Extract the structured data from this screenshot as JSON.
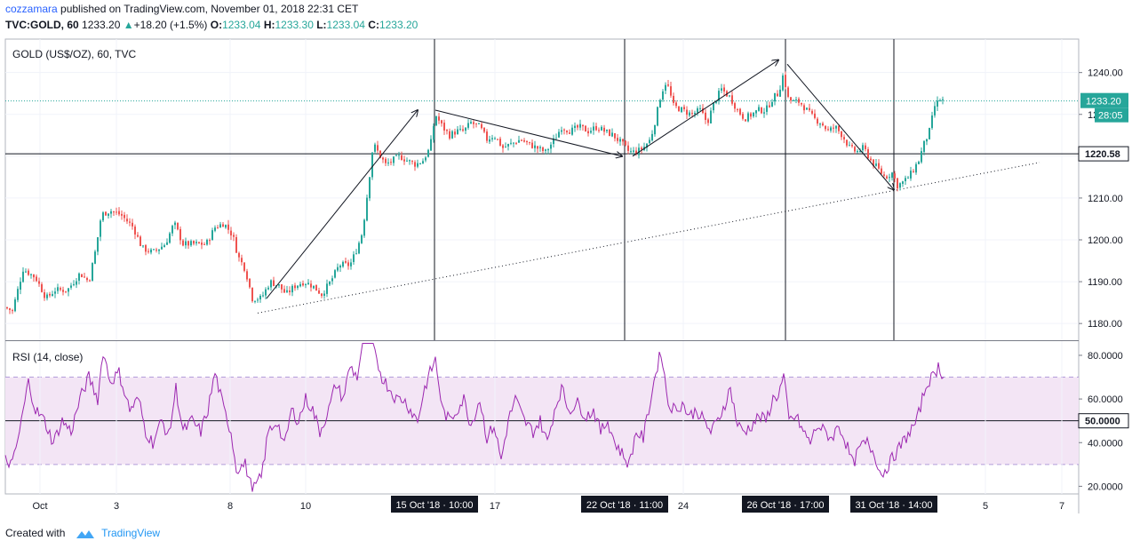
{
  "header": {
    "author": "cozzamara",
    "published_text": "published on TradingView.com, November 01, 2018 22:31 CET",
    "symbol": "TVC:GOLD, 60",
    "last": "1233.20",
    "change": "+18.20 (+1.5%)",
    "o_label": "O:",
    "o_value": "1233.04",
    "h_label": "H:",
    "h_value": "1233.30",
    "l_label": "L:",
    "l_value": "1233.04",
    "c_label": "C:",
    "c_value": "1233.20"
  },
  "footer": {
    "created_with": "Created with",
    "brand": "TradingView"
  },
  "colors": {
    "up": "#26a69a",
    "down": "#ef5350",
    "rsi_line": "#9c27b0",
    "rsi_band": "#f3e5f5",
    "last_price": "#26a69a"
  },
  "chart_data": {
    "type": "candlestick",
    "price_pane": {
      "title": "GOLD (US$/OZ), 60, TVC",
      "ylim": [
        1176,
        1248
      ],
      "y_ticks": [
        1180,
        1190,
        1200,
        1210,
        1220,
        1230,
        1240
      ],
      "y_tick_labels": [
        "1180.00",
        "1190.00",
        "1200.00",
        "1210.00",
        "1220.00",
        "1230.00",
        "1240.00"
      ],
      "last_price": 1233.2,
      "last_price_label": "1233.20",
      "countdown_label": "28:05",
      "hline_value": 1220.58,
      "hline_label": "1220.58",
      "close_path": [
        [
          0,
          1184.5
        ],
        [
          14,
          1183
        ],
        [
          26,
          1193
        ],
        [
          40,
          1191
        ],
        [
          52,
          1186
        ],
        [
          62,
          1188
        ],
        [
          76,
          1188
        ],
        [
          90,
          1192
        ],
        [
          100,
          1190
        ],
        [
          108,
          1198
        ],
        [
          114,
          1206
        ],
        [
          124,
          1207
        ],
        [
          136,
          1206
        ],
        [
          150,
          1203
        ],
        [
          160,
          1198
        ],
        [
          172,
          1197
        ],
        [
          186,
          1199
        ],
        [
          196,
          1204
        ],
        [
          206,
          1199
        ],
        [
          218,
          1199
        ],
        [
          232,
          1199
        ],
        [
          242,
          1203
        ],
        [
          252,
          1204
        ],
        [
          262,
          1201
        ],
        [
          268,
          1196
        ],
        [
          276,
          1193
        ],
        [
          284,
          1186
        ],
        [
          294,
          1186
        ],
        [
          304,
          1190
        ],
        [
          314,
          1189
        ],
        [
          322,
          1187
        ],
        [
          332,
          1189
        ],
        [
          342,
          1190
        ],
        [
          352,
          1189
        ],
        [
          362,
          1187
        ],
        [
          372,
          1190
        ],
        [
          382,
          1194
        ],
        [
          394,
          1194
        ],
        [
          402,
          1198
        ],
        [
          408,
          1202
        ],
        [
          414,
          1212
        ],
        [
          420,
          1223
        ],
        [
          428,
          1220
        ],
        [
          434,
          1218
        ],
        [
          442,
          1219
        ],
        [
          450,
          1220
        ],
        [
          458,
          1219
        ],
        [
          468,
          1218
        ],
        [
          476,
          1219
        ],
        [
          484,
          1222
        ],
        [
          490,
          1230
        ],
        [
          498,
          1227
        ],
        [
          506,
          1225
        ],
        [
          514,
          1226
        ],
        [
          522,
          1226
        ],
        [
          530,
          1228
        ],
        [
          540,
          1227
        ],
        [
          548,
          1224
        ],
        [
          556,
          1225
        ],
        [
          566,
          1222
        ],
        [
          576,
          1223
        ],
        [
          586,
          1224
        ],
        [
          594,
          1223
        ],
        [
          604,
          1222
        ],
        [
          614,
          1221
        ],
        [
          624,
          1224
        ],
        [
          632,
          1227
        ],
        [
          642,
          1226
        ],
        [
          652,
          1227
        ],
        [
          662,
          1226
        ],
        [
          672,
          1227
        ],
        [
          680,
          1226
        ],
        [
          690,
          1225
        ],
        [
          700,
          1223
        ],
        [
          708,
          1221
        ],
        [
          716,
          1221
        ],
        [
          724,
          1222
        ],
        [
          732,
          1224
        ],
        [
          738,
          1229
        ],
        [
          744,
          1235
        ],
        [
          750,
          1238
        ],
        [
          758,
          1232
        ],
        [
          768,
          1231
        ],
        [
          778,
          1230
        ],
        [
          788,
          1231
        ],
        [
          796,
          1228
        ],
        [
          804,
          1233
        ],
        [
          812,
          1236
        ],
        [
          822,
          1234
        ],
        [
          830,
          1231
        ],
        [
          838,
          1229
        ],
        [
          846,
          1230
        ],
        [
          854,
          1231
        ],
        [
          862,
          1231
        ],
        [
          870,
          1234
        ],
        [
          876,
          1235
        ],
        [
          882,
          1240
        ],
        [
          886,
          1234
        ],
        [
          892,
          1233
        ],
        [
          900,
          1233
        ],
        [
          908,
          1231
        ],
        [
          916,
          1229
        ],
        [
          924,
          1228
        ],
        [
          932,
          1226
        ],
        [
          940,
          1227
        ],
        [
          948,
          1225
        ],
        [
          956,
          1222
        ],
        [
          964,
          1221
        ],
        [
          972,
          1222
        ],
        [
          980,
          1219
        ],
        [
          988,
          1217
        ],
        [
          996,
          1215
        ],
        [
          1004,
          1216
        ],
        [
          1010,
          1213
        ],
        [
          1018,
          1214
        ],
        [
          1026,
          1216
        ],
        [
          1034,
          1219
        ],
        [
          1040,
          1223
        ],
        [
          1046,
          1226
        ],
        [
          1052,
          1232
        ],
        [
          1058,
          1233.5
        ],
        [
          1062,
          1233.2
        ]
      ],
      "dotted_trendline": [
        [
          290,
          1182.5
        ],
        [
          1170,
          1218.5
        ]
      ],
      "swing_arrows": [
        [
          [
            300,
            1186
          ],
          [
            470,
            1231
          ]
        ],
        [
          [
            490,
            1231
          ],
          [
            700,
            1220
          ]
        ],
        [
          [
            712,
            1220
          ],
          [
            876,
            1243
          ]
        ],
        [
          [
            886,
            1242
          ],
          [
            1006,
            1212
          ]
        ]
      ],
      "vertical_markers": [
        489,
        703,
        884,
        1006
      ]
    },
    "rsi_pane": {
      "title": "RSI (14, close)",
      "ylim": [
        16.5,
        86.5
      ],
      "y_ticks": [
        20,
        40,
        60,
        80
      ],
      "y_tick_labels": [
        "20.0000",
        "40.0000",
        "60.0000",
        "80.0000"
      ],
      "band": [
        30,
        70
      ],
      "mid_value": 50,
      "mid_label": "50.0000",
      "path": [
        [
          6,
          32
        ],
        [
          14,
          30
        ],
        [
          22,
          45
        ],
        [
          32,
          68
        ],
        [
          40,
          55
        ],
        [
          50,
          50
        ],
        [
          60,
          40
        ],
        [
          70,
          50
        ],
        [
          80,
          45
        ],
        [
          90,
          60
        ],
        [
          100,
          70
        ],
        [
          110,
          60
        ],
        [
          116,
          82
        ],
        [
          124,
          68
        ],
        [
          134,
          72
        ],
        [
          146,
          55
        ],
        [
          156,
          60
        ],
        [
          164,
          45
        ],
        [
          172,
          40
        ],
        [
          182,
          50
        ],
        [
          190,
          43
        ],
        [
          198,
          65
        ],
        [
          206,
          45
        ],
        [
          216,
          50
        ],
        [
          226,
          45
        ],
        [
          234,
          55
        ],
        [
          242,
          72
        ],
        [
          252,
          55
        ],
        [
          260,
          45
        ],
        [
          266,
          28
        ],
        [
          276,
          30
        ],
        [
          284,
          18
        ],
        [
          294,
          24
        ],
        [
          302,
          45
        ],
        [
          312,
          50
        ],
        [
          320,
          38
        ],
        [
          328,
          55
        ],
        [
          336,
          50
        ],
        [
          344,
          60
        ],
        [
          352,
          55
        ],
        [
          360,
          45
        ],
        [
          370,
          55
        ],
        [
          378,
          67
        ],
        [
          386,
          60
        ],
        [
          394,
          75
        ],
        [
          402,
          70
        ],
        [
          408,
          85
        ],
        [
          414,
          92
        ],
        [
          422,
          80
        ],
        [
          430,
          70
        ],
        [
          438,
          65
        ],
        [
          446,
          60
        ],
        [
          454,
          60
        ],
        [
          462,
          55
        ],
        [
          470,
          50
        ],
        [
          478,
          65
        ],
        [
          484,
          72
        ],
        [
          490,
          78
        ],
        [
          498,
          55
        ],
        [
          506,
          50
        ],
        [
          514,
          55
        ],
        [
          522,
          60
        ],
        [
          530,
          48
        ],
        [
          540,
          60
        ],
        [
          548,
          42
        ],
        [
          556,
          48
        ],
        [
          564,
          32
        ],
        [
          572,
          50
        ],
        [
          580,
          60
        ],
        [
          590,
          50
        ],
        [
          600,
          45
        ],
        [
          608,
          50
        ],
        [
          616,
          40
        ],
        [
          624,
          55
        ],
        [
          632,
          65
        ],
        [
          640,
          55
        ],
        [
          650,
          58
        ],
        [
          660,
          52
        ],
        [
          668,
          55
        ],
        [
          676,
          45
        ],
        [
          684,
          50
        ],
        [
          692,
          40
        ],
        [
          700,
          35
        ],
        [
          708,
          30
        ],
        [
          716,
          45
        ],
        [
          724,
          42
        ],
        [
          730,
          55
        ],
        [
          738,
          72
        ],
        [
          744,
          82
        ],
        [
          752,
          58
        ],
        [
          760,
          55
        ],
        [
          768,
          58
        ],
        [
          776,
          52
        ],
        [
          784,
          55
        ],
        [
          792,
          50
        ],
        [
          800,
          45
        ],
        [
          808,
          50
        ],
        [
          816,
          58
        ],
        [
          822,
          65
        ],
        [
          830,
          48
        ],
        [
          838,
          45
        ],
        [
          846,
          48
        ],
        [
          854,
          52
        ],
        [
          862,
          50
        ],
        [
          870,
          60
        ],
        [
          876,
          62
        ],
        [
          882,
          70
        ],
        [
          888,
          50
        ],
        [
          896,
          52
        ],
        [
          904,
          45
        ],
        [
          912,
          40
        ],
        [
          920,
          48
        ],
        [
          928,
          45
        ],
        [
          936,
          42
        ],
        [
          944,
          48
        ],
        [
          952,
          40
        ],
        [
          960,
          30
        ],
        [
          968,
          38
        ],
        [
          976,
          40
        ],
        [
          984,
          35
        ],
        [
          992,
          25
        ],
        [
          1000,
          30
        ],
        [
          1008,
          35
        ],
        [
          1016,
          40
        ],
        [
          1024,
          45
        ],
        [
          1032,
          50
        ],
        [
          1038,
          60
        ],
        [
          1044,
          68
        ],
        [
          1050,
          70
        ],
        [
          1056,
          75
        ],
        [
          1062,
          70
        ]
      ]
    },
    "x_tick_labels": [
      "Oct",
      "3",
      "8",
      "10",
      "17",
      "24",
      "5",
      "7"
    ],
    "x_tick_positions": [
      45,
      131,
      259,
      344,
      557,
      769,
      1109,
      1195
    ],
    "x_highlight_labels": [
      "15 Oct '18 · 10:00",
      "22 Oct '18 · 11:00",
      "26 Oct '18 · 17:00",
      "31 Oct '18 · 14:00"
    ]
  }
}
